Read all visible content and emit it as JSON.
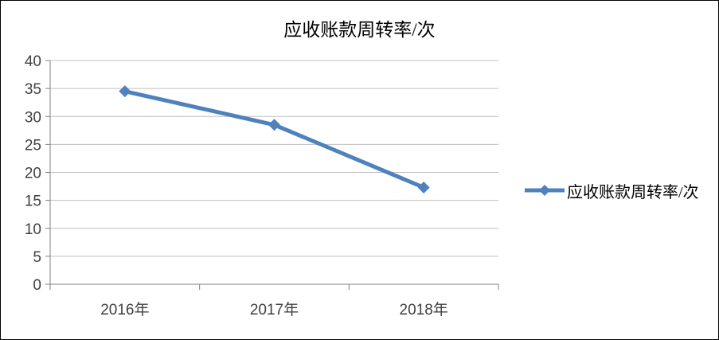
{
  "chart_data": {
    "type": "line",
    "title": "应收账款周转率/次",
    "categories": [
      "2016年",
      "2017年",
      "2018年"
    ],
    "series": [
      {
        "name": "应收账款周转率/次",
        "values": [
          34.5,
          28.5,
          17.3
        ]
      }
    ],
    "xlabel": "",
    "ylabel": "",
    "ylim": [
      0,
      40
    ],
    "yticks": [
      0,
      5,
      10,
      15,
      20,
      25,
      30,
      35,
      40
    ],
    "grid": true,
    "legend_position": "right",
    "colors": {
      "line": "#4F81BD",
      "gridline": "#BFBFBF",
      "axis": "#808080",
      "tick_text": "#404040",
      "title_text": "#000000"
    }
  }
}
